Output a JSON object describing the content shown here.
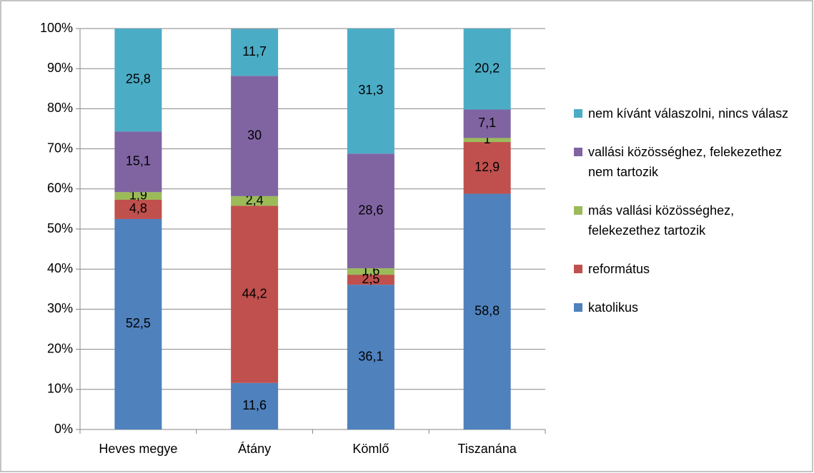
{
  "chart_data": {
    "type": "stacked_bar",
    "categories": [
      "Heves megye",
      "Átány",
      "Kömlő",
      "Tiszanána"
    ],
    "series": [
      {
        "name": "katolikus",
        "color": "#4f81bd",
        "values": [
          52.5,
          11.6,
          36.1,
          58.8
        ],
        "value_labels": [
          "52,5",
          "11,6",
          "36,1",
          "58,8"
        ]
      },
      {
        "name": "református",
        "color": "#c0504d",
        "values": [
          4.8,
          44.2,
          2.5,
          12.9
        ],
        "value_labels": [
          "4,8",
          "44,2",
          "2,5",
          "12,9"
        ]
      },
      {
        "name": "más vallási közösséghez, felekezethez tartozik",
        "color": "#9bbb59",
        "values": [
          1.9,
          2.4,
          1.6,
          1
        ],
        "value_labels": [
          "1,9",
          "2,4",
          "1,6",
          "1"
        ]
      },
      {
        "name": "vallási közösséghez, felekezethez nem tartozik",
        "color": "#8064a2",
        "values": [
          15.1,
          30,
          28.6,
          7.1
        ],
        "value_labels": [
          "15,1",
          "30",
          "28,6",
          "7,1"
        ]
      },
      {
        "name": "nem kívánt válaszolni, nincs válasz",
        "color": "#4bacc6",
        "values": [
          25.8,
          11.7,
          31.3,
          20.2
        ],
        "value_labels": [
          "25,8",
          "11,7",
          "31,3",
          "20,2"
        ]
      }
    ],
    "ylim": [
      0,
      100
    ],
    "yticks": [
      {
        "value": 0,
        "label": "0%"
      },
      {
        "value": 10,
        "label": "10%"
      },
      {
        "value": 20,
        "label": "20%"
      },
      {
        "value": 30,
        "label": "30%"
      },
      {
        "value": 40,
        "label": "40%"
      },
      {
        "value": 50,
        "label": "50%"
      },
      {
        "value": 60,
        "label": "60%"
      },
      {
        "value": 70,
        "label": "70%"
      },
      {
        "value": 80,
        "label": "80%"
      },
      {
        "value": 90,
        "label": "90%"
      },
      {
        "value": 100,
        "label": "100%"
      }
    ],
    "grid": true,
    "legend": "right"
  }
}
